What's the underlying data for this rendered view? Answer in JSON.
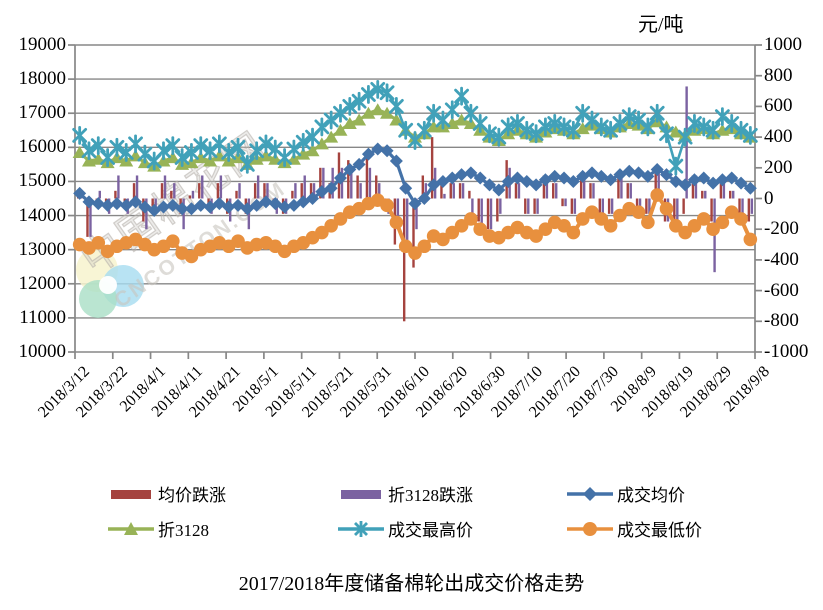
{
  "unit_label": "元/吨",
  "title": "2017/2018年度储备棉轮出成交价格走势",
  "watermark": {
    "cn": "中国棉花网",
    "en": "CNCOTTON.COM"
  },
  "chart_data": {
    "type": "combo-bar-line",
    "x_axis_note": "daily auction dates, labels every 10 days",
    "x_tick_labels": [
      "2018/3/12",
      "2018/3/22",
      "2018/4/1",
      "2018/4/11",
      "2018/4/21",
      "2018/5/1",
      "2018/5/11",
      "2018/5/21",
      "2018/5/31",
      "2018/6/10",
      "2018/6/20",
      "2018/6/30",
      "2018/7/10",
      "2018/7/20",
      "2018/7/30",
      "2018/8/9",
      "2018/8/19",
      "2018/8/29",
      "2018/9/8"
    ],
    "left_axis": {
      "min": 10000,
      "max": 19000,
      "step": 1000
    },
    "right_axis": {
      "min": -1000,
      "max": 1000,
      "step": 200
    },
    "grid": "horizontal",
    "legend_position": "bottom",
    "series": [
      {
        "name": "均价跌涨",
        "type": "bar",
        "axis": "right",
        "color": "#A5433F",
        "values": [
          50,
          -250,
          -50,
          -50,
          50,
          -50,
          100,
          -150,
          -100,
          100,
          50,
          -100,
          20,
          100,
          -50,
          100,
          -100,
          50,
          -100,
          100,
          100,
          -50,
          -100,
          50,
          100,
          100,
          200,
          100,
          300,
          250,
          150,
          300,
          150,
          -50,
          -300,
          -800,
          -450,
          150,
          400,
          100,
          100,
          100,
          50,
          -150,
          -200,
          -150,
          250,
          100,
          -100,
          -100,
          150,
          100,
          -50,
          -100,
          150,
          100,
          -100,
          -100,
          150,
          100,
          -50,
          -100,
          200,
          -150,
          -200,
          -100,
          150,
          50,
          -150,
          100,
          50,
          -150,
          -150
        ]
      },
      {
        "name": "折3128跌涨",
        "type": "bar",
        "axis": "right",
        "color": "#7B62A1",
        "values": [
          30,
          -250,
          50,
          -100,
          150,
          -100,
          150,
          -200,
          -100,
          150,
          100,
          -200,
          50,
          150,
          -100,
          150,
          -150,
          100,
          -200,
          150,
          100,
          -100,
          -100,
          100,
          150,
          100,
          200,
          200,
          200,
          200,
          100,
          200,
          100,
          -100,
          -200,
          -300,
          -200,
          100,
          200,
          30,
          100,
          100,
          -100,
          -200,
          -200,
          -100,
          200,
          100,
          -100,
          -100,
          150,
          100,
          -50,
          -100,
          150,
          100,
          -100,
          -100,
          150,
          100,
          -50,
          -100,
          200,
          -150,
          -150,
          730,
          150,
          50,
          -480,
          100,
          50,
          -150,
          -100
        ]
      },
      {
        "name": "成交均价",
        "type": "line",
        "marker": "diamond",
        "axis": "left",
        "color": "#4472A8",
        "values": [
          14650,
          14400,
          14350,
          14300,
          14350,
          14300,
          14400,
          14250,
          14150,
          14250,
          14300,
          14200,
          14200,
          14300,
          14250,
          14350,
          14250,
          14300,
          14200,
          14300,
          14400,
          14350,
          14250,
          14300,
          14400,
          14500,
          14700,
          14800,
          15100,
          15350,
          15500,
          15800,
          15950,
          15900,
          15600,
          14800,
          14350,
          14500,
          14900,
          15000,
          15100,
          15200,
          15250,
          15100,
          14900,
          14750,
          15000,
          15100,
          15000,
          14900,
          15050,
          15150,
          15100,
          15000,
          15150,
          15250,
          15150,
          15050,
          15200,
          15300,
          15250,
          15150,
          15350,
          15200,
          15000,
          14900,
          15050,
          15100,
          14950,
          15050,
          15100,
          14950,
          14800
        ]
      },
      {
        "name": "折3128",
        "type": "line",
        "marker": "triangle",
        "axis": "left",
        "color": "#98B357",
        "values": [
          15850,
          15600,
          15650,
          15550,
          15700,
          15600,
          15750,
          15550,
          15450,
          15600,
          15700,
          15500,
          15550,
          15700,
          15600,
          15750,
          15600,
          15700,
          15500,
          15650,
          15750,
          15650,
          15550,
          15650,
          15800,
          15900,
          16100,
          16300,
          16500,
          16700,
          16800,
          17000,
          17100,
          17000,
          16800,
          16500,
          16300,
          16400,
          16600,
          16600,
          16700,
          16800,
          16700,
          16500,
          16300,
          16200,
          16400,
          16500,
          16400,
          16300,
          16450,
          16550,
          16500,
          16400,
          16550,
          16650,
          16550,
          16450,
          16600,
          16700,
          16650,
          16550,
          16750,
          16600,
          16450,
          16350,
          16500,
          16550,
          16400,
          16500,
          16550,
          16400,
          16300
        ]
      },
      {
        "name": "成交最高价",
        "type": "line",
        "marker": "asterisk",
        "axis": "left",
        "color": "#41A1B9",
        "values": [
          16350,
          15900,
          16050,
          15700,
          16000,
          15850,
          16100,
          15800,
          15600,
          15900,
          16050,
          15700,
          15850,
          16050,
          15900,
          16100,
          15850,
          16000,
          15500,
          15900,
          16100,
          15950,
          15700,
          15950,
          16150,
          16300,
          16600,
          16800,
          17000,
          17200,
          17350,
          17550,
          17700,
          17600,
          17200,
          16500,
          16200,
          16500,
          17000,
          16800,
          17100,
          17500,
          17000,
          16700,
          16400,
          16300,
          16600,
          16700,
          16500,
          16400,
          16600,
          16700,
          16600,
          16500,
          17000,
          16800,
          16600,
          16500,
          16700,
          16900,
          16800,
          16600,
          17000,
          16400,
          15450,
          16300,
          16700,
          16600,
          16500,
          16900,
          16700,
          16500,
          16350
        ]
      },
      {
        "name": "成交最低价",
        "type": "line",
        "marker": "circle",
        "axis": "left",
        "color": "#E8903E",
        "values": [
          13150,
          13050,
          13200,
          12950,
          13100,
          13200,
          13300,
          13150,
          13000,
          13100,
          13250,
          12900,
          12800,
          13000,
          13100,
          13200,
          13100,
          13250,
          13050,
          13150,
          13200,
          13100,
          12950,
          13100,
          13200,
          13350,
          13500,
          13700,
          13900,
          14100,
          14200,
          14350,
          14450,
          14300,
          13800,
          13100,
          12900,
          13100,
          13400,
          13300,
          13500,
          13700,
          13900,
          13600,
          13400,
          13350,
          13500,
          13650,
          13500,
          13400,
          13600,
          13800,
          13700,
          13500,
          13900,
          14100,
          13900,
          13700,
          14000,
          14200,
          14100,
          13800,
          14600,
          14200,
          13700,
          13500,
          13700,
          13900,
          13600,
          13800,
          14100,
          13900,
          13300
        ]
      }
    ]
  }
}
